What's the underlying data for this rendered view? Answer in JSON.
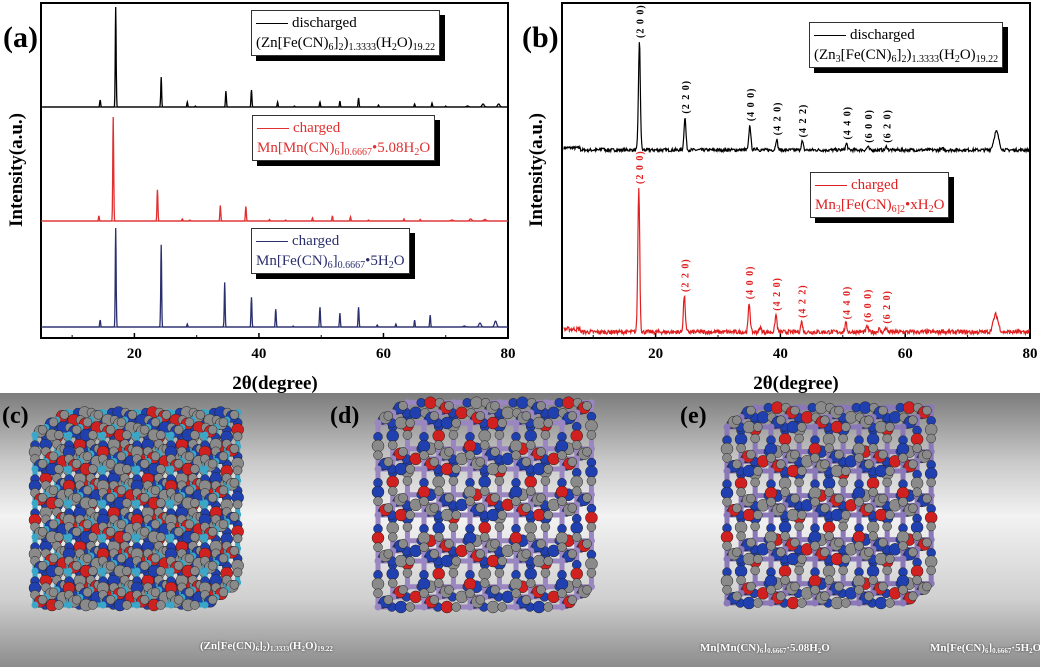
{
  "chart_data": [
    {
      "panel": "(a)",
      "type": "line",
      "xlabel": "2θ(degree)",
      "ylabel": "Intensity(a.u.)",
      "xlim": [
        5,
        80
      ],
      "xticks": [
        "20",
        "40",
        "60",
        "80"
      ],
      "series": [
        {
          "name": "discharged",
          "formula": [
            {
              "t": "(Zn[Fe(CN)"
            },
            {
              "s": "6"
            },
            {
              "t": "]"
            },
            {
              "s": "2"
            },
            {
              "t": ")"
            },
            {
              "s": "1.3333"
            },
            {
              "t": "(H"
            },
            {
              "s": "2"
            },
            {
              "t": "O)"
            },
            {
              "s": "19.22"
            }
          ],
          "color": "#000000",
          "peaks": [
            [
              14.5,
              0.07
            ],
            [
              17.0,
              1.0
            ],
            [
              24.3,
              0.3
            ],
            [
              28.5,
              0.05
            ],
            [
              29.8,
              0.01
            ],
            [
              34.7,
              0.16
            ],
            [
              38.8,
              0.17
            ],
            [
              43.0,
              0.05
            ],
            [
              45.7,
              0.01
            ],
            [
              49.8,
              0.05
            ],
            [
              53.0,
              0.06
            ],
            [
              56.0,
              0.09
            ],
            [
              59.2,
              0.02
            ],
            [
              65.0,
              0.03
            ],
            [
              67.8,
              0.04
            ],
            [
              70,
              0.01
            ],
            [
              73.5,
              0.01
            ],
            [
              76.0,
              0.03
            ],
            [
              78.5,
              0.03
            ]
          ]
        },
        {
          "name": "charged",
          "formula": [
            {
              "t": "Mn[Mn(CN)"
            },
            {
              "s": "6"
            },
            {
              "t": "]"
            },
            {
              "s": "0.6667"
            },
            {
              "t": "•5.08H"
            },
            {
              "s": "2"
            },
            {
              "t": "O"
            }
          ],
          "color": "#e03030",
          "peaks": [
            [
              14.3,
              0.05
            ],
            [
              16.6,
              1.0
            ],
            [
              23.7,
              0.3
            ],
            [
              27.7,
              0.02
            ],
            [
              28.9,
              0.01
            ],
            [
              33.8,
              0.15
            ],
            [
              37.9,
              0.14
            ],
            [
              41.7,
              0.015
            ],
            [
              44.3,
              0.01
            ],
            [
              48.6,
              0.03
            ],
            [
              51.8,
              0.05
            ],
            [
              54.7,
              0.04
            ],
            [
              57.6,
              0.01
            ],
            [
              63.3,
              0.02
            ],
            [
              65.9,
              0.015
            ],
            [
              71,
              0.01
            ],
            [
              74.0,
              0.02
            ],
            [
              76.3,
              0.015
            ]
          ]
        },
        {
          "name": "charged",
          "formula": [
            {
              "t": "Mn[Fe(CN)"
            },
            {
              "s": "6"
            },
            {
              "t": "]"
            },
            {
              "s": "0.6667"
            },
            {
              "t": "•5H"
            },
            {
              "s": "2"
            },
            {
              "t": "O"
            }
          ],
          "color": "#2a2f6e",
          "peaks": [
            [
              14.5,
              0.07
            ],
            [
              17.0,
              1.0
            ],
            [
              24.3,
              0.83
            ],
            [
              28.5,
              0.03
            ],
            [
              34.5,
              0.45
            ],
            [
              38.8,
              0.3
            ],
            [
              42.7,
              0.18
            ],
            [
              45.5,
              0.01
            ],
            [
              49.8,
              0.2
            ],
            [
              53.0,
              0.14
            ],
            [
              56.0,
              0.2
            ],
            [
              59.0,
              0.02
            ],
            [
              62.0,
              0.03
            ],
            [
              65.0,
              0.07
            ],
            [
              67.5,
              0.12
            ],
            [
              73,
              0.01
            ],
            [
              75.5,
              0.04
            ],
            [
              78.0,
              0.06
            ]
          ]
        }
      ]
    },
    {
      "panel": "(b)",
      "type": "line",
      "xlabel": "2θ(degree)",
      "ylabel": "Intensity(a.u.)",
      "xlim": [
        5,
        80
      ],
      "xticks": [
        "20",
        "40",
        "60",
        "80"
      ],
      "series": [
        {
          "name": "discharged",
          "formula": [
            {
              "t": "(Zn"
            },
            {
              "s": "3"
            },
            {
              "t": "[Fe(CN)"
            },
            {
              "s": "6"
            },
            {
              "t": "]"
            },
            {
              "s": "2"
            },
            {
              "t": ")"
            },
            {
              "s": "1.3333"
            },
            {
              "t": "(H"
            },
            {
              "s": "2"
            },
            {
              "t": "O)"
            },
            {
              "s": "19.22"
            }
          ],
          "color": "#000000",
          "peaks": [
            [
              11.5,
              0.02
            ],
            [
              17.4,
              1.0
            ],
            [
              24.7,
              0.3
            ],
            [
              35.1,
              0.23
            ],
            [
              36.2,
              0.02
            ],
            [
              39.4,
              0.1
            ],
            [
              43.5,
              0.08
            ],
            [
              50.6,
              0.06
            ],
            [
              54.0,
              0.03
            ],
            [
              57.0,
              0.03
            ],
            [
              66,
              0.01
            ],
            [
              74.6,
              0.17
            ]
          ],
          "annotations": [
            [
              17.4,
              "(2 0 0)"
            ],
            [
              24.7,
              "(2 2 0)"
            ],
            [
              35.1,
              "(4 0 0)"
            ],
            [
              39.4,
              "(4 2 0)"
            ],
            [
              43.5,
              "(4 2 2)"
            ],
            [
              50.6,
              "(4 4 0)"
            ],
            [
              54.0,
              "(6 0 0)"
            ],
            [
              57.0,
              "(6 2 0)"
            ]
          ]
        },
        {
          "name": "charged",
          "formula": [
            {
              "t": "Mn"
            },
            {
              "s": "3"
            },
            {
              "t": "[Fe(CN)"
            },
            {
              "s": "6]2"
            },
            {
              "t": "•xH"
            },
            {
              "s": "2"
            },
            {
              "t": "O"
            }
          ],
          "color": "#e02020",
          "peaks": [
            [
              17.3,
              1.0
            ],
            [
              24.6,
              0.25
            ],
            [
              35.0,
              0.2
            ],
            [
              36.8,
              0.03
            ],
            [
              39.3,
              0.12
            ],
            [
              43.4,
              0.07
            ],
            [
              50.5,
              0.06
            ],
            [
              53.9,
              0.04
            ],
            [
              55.8,
              0.02
            ],
            [
              56.9,
              0.03
            ],
            [
              66,
              0.01
            ],
            [
              74.5,
              0.12
            ]
          ],
          "annotations": [
            [
              17.3,
              "(2 0 0)"
            ],
            [
              24.6,
              "(2 2 0)"
            ],
            [
              35.0,
              "(4 0 0)"
            ],
            [
              39.3,
              "(4 2 0)"
            ],
            [
              43.4,
              "(4 2 2)"
            ],
            [
              50.5,
              "(4 4 0)"
            ],
            [
              53.9,
              "(6 0 0)"
            ],
            [
              56.9,
              "(6 2 0)"
            ]
          ]
        }
      ]
    }
  ],
  "structures": [
    {
      "panel": "(c)",
      "formula": [
        {
          "t": "(Zn[Fe(CN)"
        },
        {
          "s": "6"
        },
        {
          "t": "]"
        },
        {
          "s": "2"
        },
        {
          "t": ")"
        },
        {
          "s": "1.3333"
        },
        {
          "t": "(H"
        },
        {
          "s": "2"
        },
        {
          "t": "O)"
        },
        {
          "s": "19.22"
        }
      ],
      "frame_color": "#3aa6c8"
    },
    {
      "panel": "(d)",
      "formula": [
        {
          "t": "Mn[Mn(CN)"
        },
        {
          "s": "6"
        },
        {
          "t": "]"
        },
        {
          "s": "0.6667"
        },
        {
          "t": "·5.08H"
        },
        {
          "s": "2"
        },
        {
          "t": "O"
        }
      ],
      "frame_color": "#9a86c0"
    },
    {
      "panel": "(e)",
      "formula": [
        {
          "t": "Mn[Fe(CN)"
        },
        {
          "s": "6"
        },
        {
          "t": "]"
        },
        {
          "s": "0.6667"
        },
        {
          "t": "·5H"
        },
        {
          "s": "2"
        },
        {
          "t": "O"
        }
      ],
      "frame_color": "#8a78b8"
    }
  ]
}
